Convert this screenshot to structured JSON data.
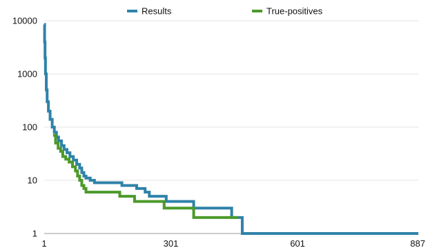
{
  "chart_data": {
    "type": "line",
    "title": "",
    "xlabel": "",
    "ylabel": "",
    "y_scale": "log",
    "ylim": [
      1,
      10000
    ],
    "xlim": [
      1,
      887
    ],
    "x_ticks": [
      "1",
      "301",
      "601",
      "887"
    ],
    "y_ticks": [
      "1",
      "10",
      "100",
      "1000",
      "10000"
    ],
    "grid": "horizontal",
    "legend_position": "top",
    "series": [
      {
        "name": "Results",
        "color": "#2f82a8",
        "step": true,
        "points": [
          [
            1,
            8500
          ],
          [
            2,
            4000
          ],
          [
            3,
            2000
          ],
          [
            4,
            1000
          ],
          [
            6,
            500
          ],
          [
            8,
            300
          ],
          [
            11,
            200
          ],
          [
            15,
            140
          ],
          [
            20,
            100
          ],
          [
            25,
            80
          ],
          [
            30,
            65
          ],
          [
            35,
            55
          ],
          [
            42,
            45
          ],
          [
            48,
            38
          ],
          [
            55,
            33
          ],
          [
            62,
            28
          ],
          [
            70,
            24
          ],
          [
            78,
            20
          ],
          [
            85,
            17
          ],
          [
            90,
            14
          ],
          [
            95,
            12
          ],
          [
            100,
            11
          ],
          [
            110,
            10
          ],
          [
            120,
            9
          ],
          [
            175,
            9
          ],
          [
            185,
            8
          ],
          [
            215,
            8
          ],
          [
            220,
            7
          ],
          [
            240,
            6
          ],
          [
            250,
            5
          ],
          [
            285,
            5
          ],
          [
            290,
            4
          ],
          [
            350,
            4
          ],
          [
            355,
            3
          ],
          [
            440,
            3
          ],
          [
            445,
            2
          ],
          [
            465,
            2
          ],
          [
            470,
            1
          ],
          [
            887,
            1
          ]
        ]
      },
      {
        "name": "True-positives",
        "color": "#4c9a2a",
        "step": true,
        "points": [
          [
            22,
            70
          ],
          [
            28,
            50
          ],
          [
            34,
            40
          ],
          [
            40,
            35
          ],
          [
            45,
            28
          ],
          [
            52,
            25
          ],
          [
            60,
            22
          ],
          [
            68,
            18
          ],
          [
            75,
            15
          ],
          [
            80,
            12
          ],
          [
            85,
            10
          ],
          [
            90,
            8
          ],
          [
            95,
            7
          ],
          [
            100,
            6
          ],
          [
            175,
            6
          ],
          [
            180,
            5
          ],
          [
            210,
            5
          ],
          [
            215,
            4
          ],
          [
            280,
            4
          ],
          [
            285,
            3
          ],
          [
            350,
            3
          ],
          [
            355,
            2
          ],
          [
            460,
            2
          ]
        ]
      }
    ]
  }
}
